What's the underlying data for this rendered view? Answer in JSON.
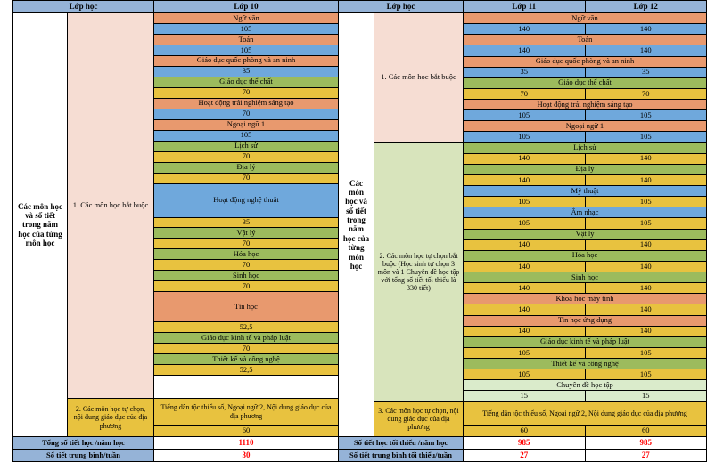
{
  "palette": {
    "header_blue": "#95B3D7",
    "salmon": "#E8996E",
    "blue": "#6FA8DC",
    "green": "#9CBB5D",
    "yellow": "#E8C23F",
    "pink_bg": "#F6DDD3",
    "green_bg": "#D8E4BC",
    "lightgreen": "#DAEBCB",
    "red": "#FF0000"
  },
  "left_table": {
    "header": {
      "row_label": "Lớp học",
      "grades": [
        "Lớp 10"
      ]
    },
    "sidebar": "Các môn học và số tiết trong năm học của từng môn học",
    "sections": [
      {
        "label": "1. Các môn học bắt buộc",
        "style": "pink"
      },
      {
        "label": "2. Các môn học tự chọn, nội dung giáo dục của địa phương",
        "style": "yellow"
      }
    ],
    "subjects": [
      {
        "name": "Ngữ văn",
        "hours": [
          "105"
        ],
        "style": "core"
      },
      {
        "name": "Toán",
        "hours": [
          "105"
        ],
        "style": "core"
      },
      {
        "name": "Giáo dục quốc phòng và an ninh",
        "hours": [
          "35"
        ],
        "style": "core"
      },
      {
        "name": "Giáo dục thể chất",
        "hours": [
          "70"
        ],
        "style": "sport"
      },
      {
        "name": "Hoạt động trải nghiệm sáng tạo",
        "hours": [
          "70"
        ],
        "style": "core"
      },
      {
        "name": "Ngoại ngữ 1",
        "hours": [
          "105"
        ],
        "style": "core"
      },
      {
        "name": "Lịch sử",
        "hours": [
          "70"
        ],
        "style": "sport"
      },
      {
        "name": "Địa lý",
        "hours": [
          "70"
        ],
        "style": "sport"
      },
      {
        "name": "Hoạt động nghệ thuật",
        "hours": [
          "35"
        ],
        "style": "art"
      },
      {
        "name": "Vật lý",
        "hours": [
          "70"
        ],
        "style": "sport"
      },
      {
        "name": "Hóa học",
        "hours": [
          "70"
        ],
        "style": "sport"
      },
      {
        "name": "Sinh học",
        "hours": [
          "70"
        ],
        "style": "sport"
      },
      {
        "name": "Tin học",
        "hours": [
          "52,5"
        ],
        "style": "tech"
      },
      {
        "name": "Giáo dục kinh tế và pháp luật",
        "hours": [
          "70"
        ],
        "style": "sport"
      },
      {
        "name": "Thiết kế và công nghệ",
        "hours": [
          "52,5"
        ],
        "style": "sport"
      },
      {
        "name": "",
        "hours": [],
        "style": "blank"
      },
      {
        "name": "Tiếng dân tộc thiểu số, Ngoại ngữ 2, Nội dung giáo dục của địa phương",
        "hours": [
          "60"
        ],
        "style": "local"
      }
    ],
    "totals": [
      {
        "label": "Tổng số tiết học /năm học",
        "values": [
          "1110"
        ]
      },
      {
        "label": "Số tiết trung bình/tuần",
        "values": [
          "30"
        ]
      }
    ]
  },
  "right_table": {
    "header": {
      "row_label": "Lớp học",
      "grades": [
        "Lớp 11",
        "Lớp 12"
      ]
    },
    "sidebar": "Các môn học và số tiết trong năm học của từng môn học",
    "sections": [
      {
        "label": "1. Các môn học bắt buộc",
        "style": "pink"
      },
      {
        "label": "2. Các môn học tự chọn bắt buộc (Học sinh tự chọn 3 môn và 1 Chuyên đề học tập với tổng số tiết tối thiểu là 330 tiết)",
        "style": "green"
      },
      {
        "label": "3. Các môn học tự chọn, nội dung giáo dục của địa phương",
        "style": "yellow"
      }
    ],
    "subjects": [
      {
        "name": "Ngữ văn",
        "hours": [
          "140",
          "140"
        ],
        "style": "core"
      },
      {
        "name": "Toán",
        "hours": [
          "140",
          "140"
        ],
        "style": "core"
      },
      {
        "name": "Giáo dục quốc phòng và an ninh",
        "hours": [
          "35",
          "35"
        ],
        "style": "core"
      },
      {
        "name": "Giáo dục thể chất",
        "hours": [
          "70",
          "70"
        ],
        "style": "sport"
      },
      {
        "name": "Hoạt động trải nghiệm sáng tạo",
        "hours": [
          "105",
          "105"
        ],
        "style": "core"
      },
      {
        "name": "Ngoại ngữ 1",
        "hours": [
          "105",
          "105"
        ],
        "style": "core"
      },
      {
        "name": "Lịch sử",
        "hours": [
          "140",
          "140"
        ],
        "style": "sport"
      },
      {
        "name": "Địa lý",
        "hours": [
          "140",
          "140"
        ],
        "style": "sport"
      },
      {
        "name": "Mỹ thuật",
        "hours": [
          "105",
          "105"
        ],
        "style": "art"
      },
      {
        "name": "Âm nhạc",
        "hours": [
          "105",
          "105"
        ],
        "style": "art"
      },
      {
        "name": "Vật lý",
        "hours": [
          "140",
          "140"
        ],
        "style": "sport"
      },
      {
        "name": "Hóa học",
        "hours": [
          "140",
          "140"
        ],
        "style": "sport"
      },
      {
        "name": "Sinh học",
        "hours": [
          "140",
          "140"
        ],
        "style": "sport"
      },
      {
        "name": "Khoa học máy tính",
        "hours": [
          "140",
          "140"
        ],
        "style": "tech"
      },
      {
        "name": "Tin học ứng dụng",
        "hours": [
          "140",
          "140"
        ],
        "style": "tech"
      },
      {
        "name": "Giáo dục kinh tế và pháp luật",
        "hours": [
          "105",
          "105"
        ],
        "style": "sport"
      },
      {
        "name": "Thiết kế và công nghệ",
        "hours": [
          "105",
          "105"
        ],
        "style": "sport"
      },
      {
        "name": "Chuyên đề học tập",
        "hours": [
          "15",
          "15"
        ],
        "style": "special"
      },
      {
        "name": "Tiếng dân tộc thiểu số, Ngoại ngữ 2, Nội dung giáo dục của địa phương",
        "hours": [
          "60",
          "60"
        ],
        "style": "local"
      }
    ],
    "totals": [
      {
        "label": "Số tiết học tối thiểu /năm học",
        "values": [
          "985",
          "985"
        ]
      },
      {
        "label": "Số tiết trung bình tối thiểu/tuần",
        "values": [
          "27",
          "27"
        ]
      }
    ]
  }
}
